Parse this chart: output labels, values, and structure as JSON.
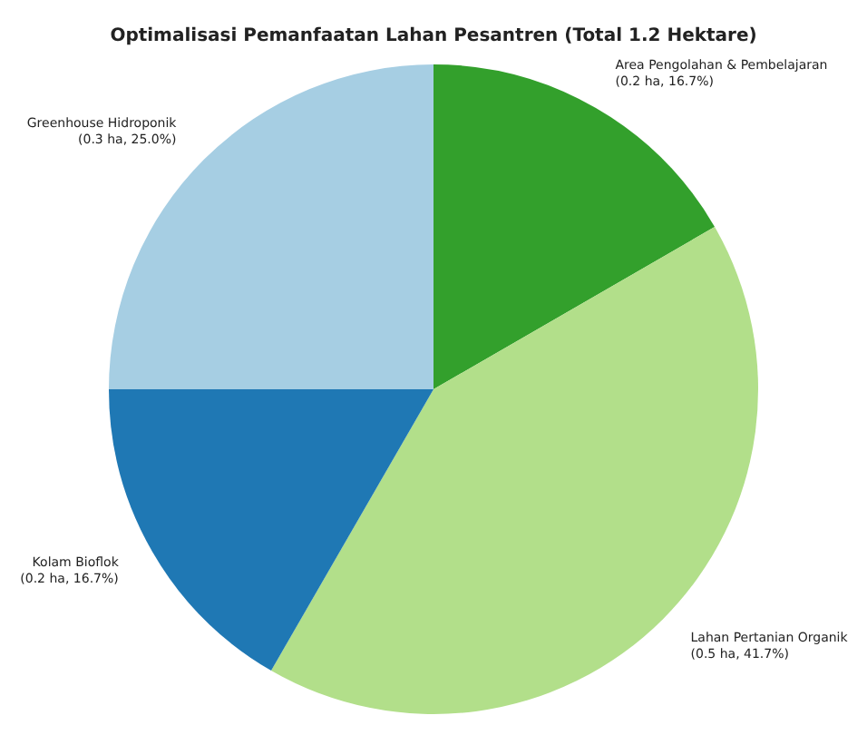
{
  "chart_data": {
    "type": "pie",
    "title": "Optimalisasi Pemanfaatan Lahan Pesantren (Total 1.2 Hektare)",
    "categories": [
      "Area Pengolahan & Pembelajaran",
      "Lahan Pertanian Organik",
      "Kolam Bioflok",
      "Greenhouse Hidroponik"
    ],
    "values": [
      0.2,
      0.5,
      0.2,
      0.3
    ],
    "value_labels": [
      "(0.2 ha, 16.7%)",
      "(0.5 ha, 41.7%)",
      "(0.2 ha, 16.7%)",
      "(0.3 ha, 25.0%)"
    ],
    "colors": [
      "#33a02c",
      "#b2df8a",
      "#1f78b4",
      "#a6cee3"
    ],
    "legend": false
  }
}
